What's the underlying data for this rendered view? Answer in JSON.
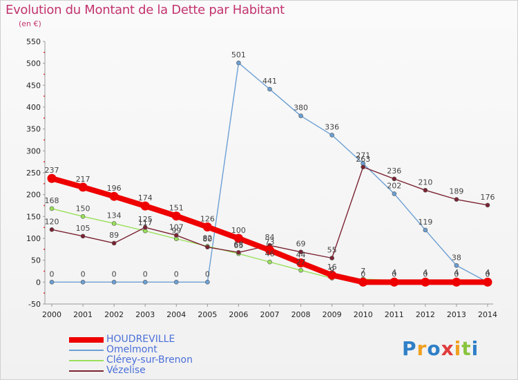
{
  "title": "Evolution du Montant de la Dette par Habitant",
  "subtitle": "(en €)",
  "brand": {
    "letters": [
      {
        "ch": "P",
        "color": "#2f7fc7"
      },
      {
        "ch": "r",
        "color": "#f0a020"
      },
      {
        "ch": "o",
        "color": "#2f7fc7"
      },
      {
        "ch": "x",
        "color": "#e03c3c"
      },
      {
        "ch": "i",
        "color": "#f0a020"
      },
      {
        "ch": "t",
        "color": "#8ac43f"
      },
      {
        "ch": "i",
        "color": "#2f7fc7"
      }
    ]
  },
  "chart_data": {
    "type": "line",
    "title": "Evolution du Montant de la Dette par Habitant",
    "ylabel": "(en €)",
    "xlabel": "",
    "x": [
      "2000",
      "2001",
      "2002",
      "2003",
      "2004",
      "2005",
      "2006",
      "2007",
      "2008",
      "2009",
      "2010",
      "2011",
      "2012",
      "2013",
      "2014"
    ],
    "ylim": [
      -50,
      550
    ],
    "yticks": [
      -50,
      0,
      50,
      100,
      150,
      200,
      250,
      300,
      350,
      400,
      450,
      500,
      550
    ],
    "grid": false,
    "legend": "bottom-left",
    "series": [
      {
        "name": "HOUDREVILLE",
        "color": "#ee0000",
        "values": [
          237,
          217,
          196,
          174,
          151,
          126,
          100,
          73,
          44,
          16,
          0,
          0,
          0,
          0,
          0
        ]
      },
      {
        "name": "Omelmont",
        "color": "#6b9fd4",
        "values": [
          0,
          0,
          0,
          0,
          0,
          0,
          501,
          441,
          380,
          336,
          271,
          202,
          119,
          38,
          0
        ]
      },
      {
        "name": "Clérey-sur-Brenon",
        "color": "#99e05a",
        "values": [
          168,
          150,
          134,
          117,
          99,
          82,
          65,
          46,
          27,
          9,
          7,
          4,
          4,
          4,
          4
        ]
      },
      {
        "name": "Vézelise",
        "color": "#7a2231",
        "values": [
          120,
          105,
          89,
          125,
          107,
          80,
          68,
          84,
          69,
          55,
          263,
          236,
          210,
          189,
          176
        ]
      }
    ]
  }
}
